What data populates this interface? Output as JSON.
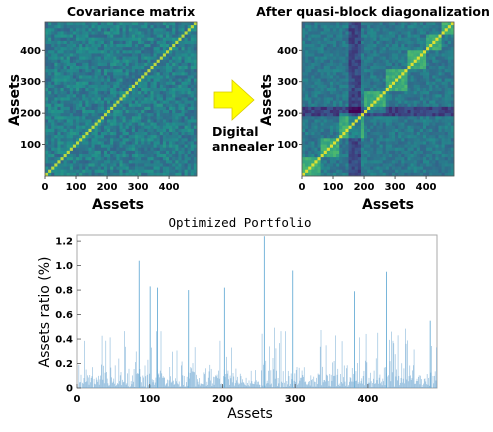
{
  "chart_data": [
    {
      "type": "heatmap",
      "title": "Covariance matrix",
      "xlabel": "Assets",
      "ylabel": "Assets",
      "xlim": [
        0,
        490
      ],
      "ylim": [
        0,
        490
      ],
      "x_ticks": [
        "0",
        "100",
        "200",
        "300",
        "400"
      ],
      "y_ticks": [
        "100",
        "200",
        "300",
        "400"
      ],
      "colormap": "viridis"
    },
    {
      "type": "heatmap",
      "title": "After quasi-block diagonalization",
      "xlabel": "Assets",
      "ylabel": "Assets",
      "xlim": [
        0,
        490
      ],
      "ylim": [
        0,
        490
      ],
      "x_ticks": [
        "0",
        "100",
        "200",
        "300",
        "400"
      ],
      "y_ticks": [
        "100",
        "200",
        "300",
        "400"
      ],
      "colormap": "viridis"
    },
    {
      "type": "bar",
      "title": "Optimized Portfolio",
      "xlabel": "Assets",
      "ylabel": "Assets ratio (%)",
      "xlim": [
        0,
        495
      ],
      "ylim": [
        0,
        1.25
      ],
      "x_ticks": [
        "0",
        "100",
        "200",
        "300",
        "400"
      ],
      "y_ticks": [
        "0",
        "0.2",
        "0.4",
        "0.6",
        "0.8",
        "1.0",
        "1.2"
      ],
      "highlight_peaks": [
        {
          "x": 85,
          "y": 1.04
        },
        {
          "x": 100,
          "y": 0.83
        },
        {
          "x": 110,
          "y": 0.82
        },
        {
          "x": 153,
          "y": 0.8
        },
        {
          "x": 202,
          "y": 0.82
        },
        {
          "x": 257,
          "y": 1.24
        },
        {
          "x": 296,
          "y": 0.96
        },
        {
          "x": 381,
          "y": 0.79
        },
        {
          "x": 425,
          "y": 0.95
        },
        {
          "x": 485,
          "y": 0.55
        }
      ],
      "color": "#2c7bb6"
    }
  ],
  "arrow": {
    "label_lines": [
      "Digital",
      "annealer"
    ],
    "color": "#ffff00"
  }
}
